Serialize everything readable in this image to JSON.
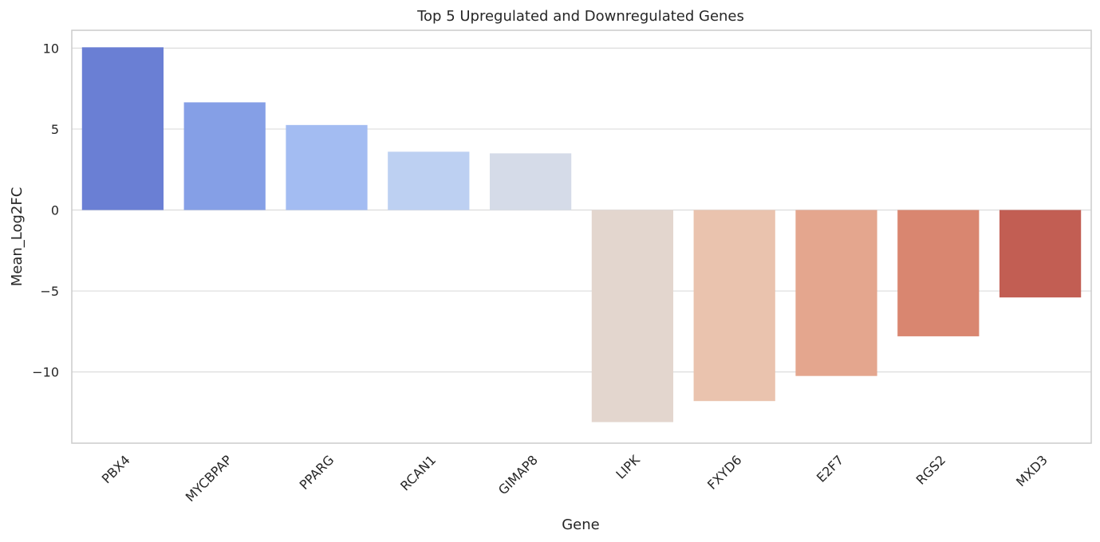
{
  "chart_data": {
    "type": "bar",
    "title": "Top 5 Upregulated and Downregulated Genes",
    "xlabel": "Gene",
    "ylabel": "Mean_Log2FC",
    "categories": [
      "PBX4",
      "MYCBPAP",
      "PPARG",
      "RCAN1",
      "GIMAP8",
      "LIPK",
      "FXYD6",
      "E2F7",
      "RGS2",
      "MXD3"
    ],
    "values": [
      10.05,
      6.65,
      5.25,
      3.6,
      3.5,
      -13.1,
      -11.8,
      -10.25,
      -7.8,
      -5.4
    ],
    "colors": [
      "#6a7fd4",
      "#859fe6",
      "#a3bcf2",
      "#bdd0f2",
      "#d5dbe8",
      "#e3d6ce",
      "#eac3ae",
      "#e4a68e",
      "#d98670",
      "#c25e53"
    ],
    "ylim": [
      -14.4,
      11.1
    ],
    "yticks": [
      10,
      5,
      0,
      -5,
      -10
    ],
    "ytick_labels": [
      "10",
      "5",
      "0",
      "−5",
      "−10"
    ],
    "grid": true
  }
}
